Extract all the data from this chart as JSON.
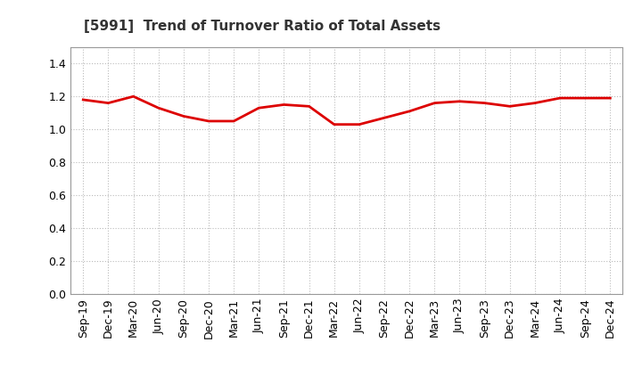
{
  "title": "[5991]  Trend of Turnover Ratio of Total Assets",
  "title_fontsize": 11,
  "title_fontweight": "bold",
  "line_color": "#dd0000",
  "line_width": 2.0,
  "background_color": "#ffffff",
  "grid_color": "#bbbbbb",
  "ylim": [
    0.0,
    1.5
  ],
  "yticks": [
    0.0,
    0.2,
    0.4,
    0.6,
    0.8,
    1.0,
    1.2,
    1.4
  ],
  "x_labels": [
    "Sep-19",
    "Dec-19",
    "Mar-20",
    "Jun-20",
    "Sep-20",
    "Dec-20",
    "Mar-21",
    "Jun-21",
    "Sep-21",
    "Dec-21",
    "Mar-22",
    "Jun-22",
    "Sep-22",
    "Dec-22",
    "Mar-23",
    "Jun-23",
    "Sep-23",
    "Dec-23",
    "Mar-24",
    "Jun-24",
    "Sep-24",
    "Dec-24"
  ],
  "values": [
    1.18,
    1.16,
    1.2,
    1.13,
    1.08,
    1.05,
    1.05,
    1.13,
    1.15,
    1.14,
    1.03,
    1.03,
    1.07,
    1.11,
    1.16,
    1.17,
    1.16,
    1.14,
    1.16,
    1.19,
    1.19,
    1.19
  ],
  "tick_fontsize": 9,
  "ytick_fontsize": 9
}
